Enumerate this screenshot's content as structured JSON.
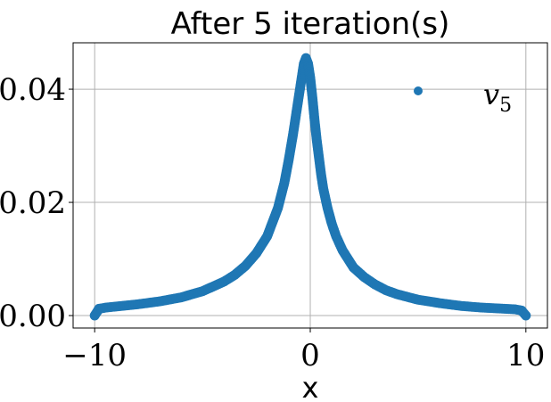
{
  "chart_data": {
    "type": "scatter",
    "title": "After 5 iteration(s)",
    "xlabel": "x",
    "ylabel": "",
    "xlim": [
      -11.0,
      11.0
    ],
    "ylim": [
      -0.0022,
      0.0482
    ],
    "xticks": [
      -10,
      0,
      10
    ],
    "xtick_labels": [
      "−10",
      "0",
      "10"
    ],
    "yticks": [
      0.0,
      0.02,
      0.04
    ],
    "ytick_labels": [
      "0.00",
      "0.02",
      "0.04"
    ],
    "grid": true,
    "legend_position": "top-right",
    "series": [
      {
        "name": "v5",
        "legend_base": "v",
        "legend_sub": "5",
        "color": "#1f77b4",
        "x": [
          -10.0,
          -9.8,
          -9.5,
          -9.0,
          -8.0,
          -7.0,
          -6.0,
          -5.0,
          -4.0,
          -3.5,
          -3.0,
          -2.5,
          -2.0,
          -1.5,
          -1.2,
          -1.0,
          -0.8,
          -0.6,
          -0.5,
          -0.4,
          -0.3,
          -0.2,
          -0.1,
          0.0,
          0.1,
          0.2,
          0.3,
          0.4,
          0.5,
          0.6,
          0.8,
          1.0,
          1.2,
          1.5,
          2.0,
          2.5,
          3.0,
          3.5,
          4.0,
          5.0,
          6.0,
          7.0,
          8.0,
          9.0,
          9.5,
          9.8,
          10.0
        ],
        "y": [
          0.0,
          0.0012,
          0.0014,
          0.0016,
          0.002,
          0.0025,
          0.0032,
          0.0043,
          0.006,
          0.0072,
          0.0088,
          0.011,
          0.014,
          0.019,
          0.0235,
          0.0275,
          0.032,
          0.037,
          0.0395,
          0.042,
          0.0445,
          0.0455,
          0.0445,
          0.042,
          0.0385,
          0.0345,
          0.031,
          0.028,
          0.025,
          0.0225,
          0.019,
          0.0162,
          0.014,
          0.0115,
          0.0085,
          0.0068,
          0.0055,
          0.0045,
          0.0038,
          0.0028,
          0.0022,
          0.0017,
          0.0014,
          0.0012,
          0.0011,
          0.0009,
          0.0
        ]
      }
    ]
  }
}
